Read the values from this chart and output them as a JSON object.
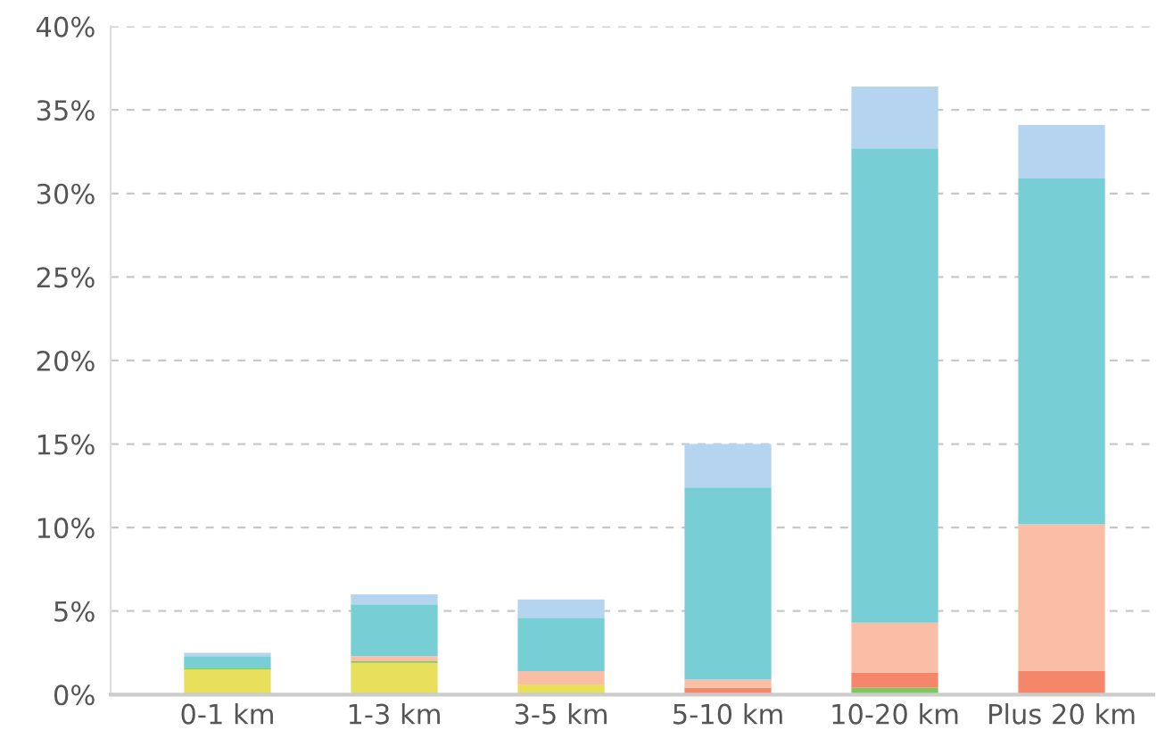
{
  "chart_data": {
    "type": "bar",
    "stacked": true,
    "categories": [
      "0-1 km",
      "1-3 km",
      "3-5 km",
      "5-10 km",
      "10-20 km",
      "Plus 20 km"
    ],
    "series": [
      {
        "color": "#e8e05a",
        "values": [
          1.5,
          1.9,
          0.6,
          0,
          0,
          0
        ]
      },
      {
        "color": "#7dc95e",
        "values": [
          0.1,
          0.1,
          0,
          0,
          0.4,
          0
        ]
      },
      {
        "color": "#f4866a",
        "values": [
          0,
          0,
          0,
          0.4,
          0.9,
          1.4
        ]
      },
      {
        "color": "#f9bea5",
        "values": [
          0,
          0.3,
          0.8,
          0.5,
          3.0,
          8.8
        ]
      },
      {
        "color": "#77ced5",
        "values": [
          0.7,
          3.1,
          3.2,
          11.5,
          28.4,
          20.7
        ]
      },
      {
        "color": "#b5d4ef",
        "values": [
          0.2,
          0.6,
          1.1,
          2.6,
          3.7,
          3.2
        ]
      }
    ],
    "ylim": [
      0,
      40
    ],
    "yticks": [
      {
        "value": 0,
        "label": "0%"
      },
      {
        "value": 5,
        "label": "5%"
      },
      {
        "value": 10,
        "label": "10%"
      },
      {
        "value": 15,
        "label": "15%"
      },
      {
        "value": 20,
        "label": "20%"
      },
      {
        "value": 25,
        "label": "25%"
      },
      {
        "value": 30,
        "label": "30%"
      },
      {
        "value": 35,
        "label": "35%"
      },
      {
        "value": 40,
        "label": "40%"
      }
    ],
    "grid": "y"
  }
}
